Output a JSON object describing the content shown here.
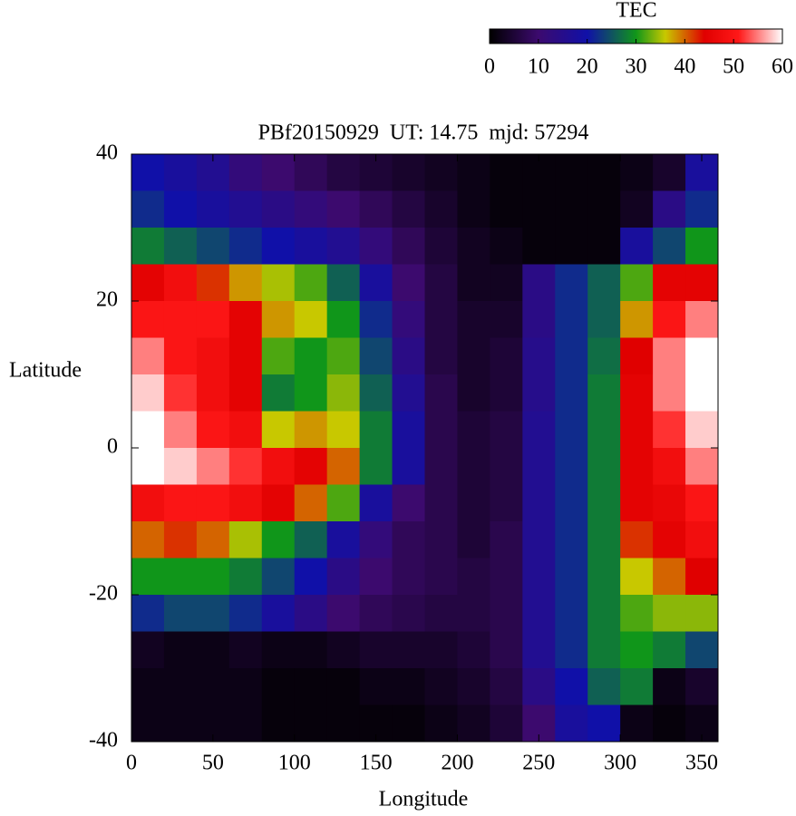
{
  "chart_data": {
    "type": "heatmap",
    "title": "PBf20150929  UT: 14.75  mjd: 57294",
    "x_label": "Longitude",
    "y_label": "Latitude",
    "x": [
      10,
      30,
      50,
      70,
      90,
      110,
      130,
      150,
      170,
      190,
      210,
      230,
      250,
      270,
      290,
      310,
      330,
      350
    ],
    "y": [
      37.5,
      32.5,
      27.5,
      22.5,
      17.5,
      12.5,
      7.5,
      2.5,
      -2.5,
      -7.5,
      -12.5,
      -17.5,
      -22.5,
      -27.5,
      -32.5,
      -37.5
    ],
    "values": [
      [
        20,
        18,
        16,
        12,
        10,
        8,
        6,
        5,
        4,
        3,
        2,
        1,
        1,
        1,
        1,
        2,
        4,
        18
      ],
      [
        22,
        20,
        18,
        16,
        14,
        12,
        10,
        8,
        6,
        4,
        2,
        1,
        1,
        1,
        1,
        3,
        14,
        22
      ],
      [
        28,
        26,
        24,
        22,
        20,
        18,
        16,
        12,
        8,
        5,
        3,
        2,
        1,
        1,
        1,
        18,
        24,
        30
      ],
      [
        45,
        48,
        42,
        38,
        35,
        32,
        26,
        18,
        10,
        6,
        3,
        3,
        14,
        22,
        26,
        32,
        45,
        45
      ],
      [
        50,
        50,
        50,
        45,
        38,
        36,
        30,
        22,
        12,
        6,
        4,
        4,
        14,
        22,
        26,
        38,
        50,
        55
      ],
      [
        55,
        50,
        48,
        45,
        32,
        30,
        32,
        24,
        14,
        6,
        4,
        5,
        15,
        22,
        27,
        44,
        55,
        60
      ],
      [
        58,
        52,
        48,
        45,
        28,
        30,
        34,
        26,
        16,
        7,
        4,
        5,
        15,
        22,
        28,
        45,
        55,
        60
      ],
      [
        60,
        55,
        50,
        48,
        36,
        38,
        36,
        28,
        18,
        7,
        5,
        6,
        16,
        22,
        28,
        45,
        52,
        58
      ],
      [
        60,
        58,
        55,
        52,
        48,
        45,
        40,
        28,
        18,
        7,
        5,
        6,
        16,
        22,
        28,
        45,
        48,
        55
      ],
      [
        48,
        50,
        50,
        48,
        45,
        40,
        32,
        18,
        10,
        7,
        5,
        6,
        16,
        22,
        28,
        45,
        46,
        50
      ],
      [
        40,
        42,
        40,
        35,
        30,
        26,
        18,
        12,
        8,
        7,
        5,
        7,
        16,
        22,
        28,
        42,
        45,
        48
      ],
      [
        30,
        30,
        30,
        28,
        24,
        20,
        14,
        10,
        8,
        7,
        6,
        7,
        16,
        22,
        28,
        36,
        40,
        44
      ],
      [
        22,
        24,
        24,
        22,
        18,
        14,
        10,
        8,
        7,
        6,
        6,
        7,
        16,
        22,
        28,
        32,
        34,
        34
      ],
      [
        3,
        2,
        2,
        3,
        2,
        2,
        3,
        4,
        4,
        4,
        5,
        7,
        16,
        22,
        28,
        30,
        28,
        24
      ],
      [
        2,
        2,
        2,
        2,
        1,
        1,
        1,
        2,
        2,
        3,
        4,
        6,
        14,
        20,
        26,
        28,
        2,
        4
      ],
      [
        2,
        2,
        2,
        2,
        1,
        1,
        1,
        1,
        1,
        2,
        3,
        5,
        10,
        18,
        20,
        2,
        1,
        2
      ]
    ],
    "xlim": [
      0,
      360
    ],
    "xticks": [
      0,
      50,
      100,
      150,
      200,
      250,
      300,
      350
    ],
    "ylim": [
      -40,
      40
    ],
    "yticks": [
      -40,
      -20,
      0,
      20,
      40
    ],
    "cell_size": [
      20,
      5
    ],
    "colorbar": {
      "label": "TEC",
      "lim": [
        0,
        60
      ],
      "ticks": [
        0,
        10,
        20,
        30,
        40,
        50,
        60
      ]
    },
    "colormap": [
      {
        "value": 0,
        "color": "#000000"
      },
      {
        "value": 10,
        "color": "#3c0a6e"
      },
      {
        "value": 20,
        "color": "#1010a8"
      },
      {
        "value": 30,
        "color": "#10961a"
      },
      {
        "value": 36,
        "color": "#c8c800"
      },
      {
        "value": 44,
        "color": "#e00000"
      },
      {
        "value": 51,
        "color": "#ff1818"
      },
      {
        "value": 60,
        "color": "#ffffff"
      }
    ]
  }
}
